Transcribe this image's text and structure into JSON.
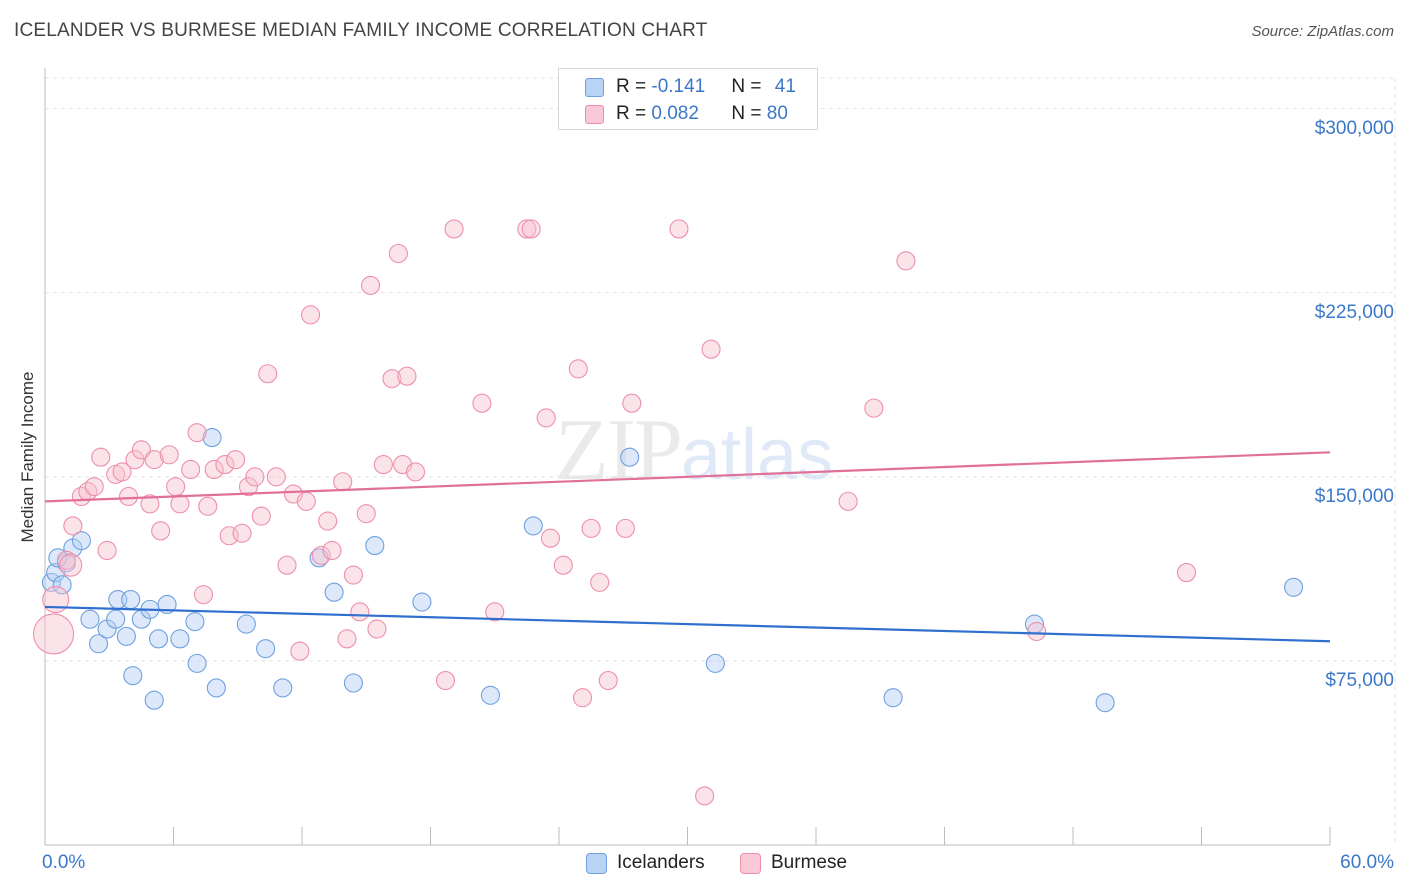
{
  "header": {
    "title": "ICELANDER VS BURMESE MEDIAN FAMILY INCOME CORRELATION CHART",
    "source": "Source: ZipAtlas.com"
  },
  "watermark": {
    "zip": "ZIP",
    "atlas": "atlas"
  },
  "legend": {
    "rows": [
      {
        "r_label": "R = ",
        "r_value": "-0.141",
        "n_label": "N = ",
        "n_value": "41",
        "color": "#a9c8f0"
      },
      {
        "r_label": "R = ",
        "r_value": "0.082",
        "n_label": "N = ",
        "n_value": "80",
        "color": "#f7b8cb"
      }
    ]
  },
  "bottom_legend": {
    "icelanders": "Icelanders",
    "burmese": "Burmese"
  },
  "chart_data": {
    "type": "scatter",
    "title": "ICELANDER VS BURMESE MEDIAN FAMILY INCOME CORRELATION CHART",
    "xlabel": "",
    "ylabel": "Median Family Income",
    "xlim": [
      0,
      60
    ],
    "ylim": [
      0,
      312500
    ],
    "x_tick_labels": [
      "0.0%",
      "60.0%"
    ],
    "y_ticks": [
      {
        "value": 75000,
        "label": "$75,000"
      },
      {
        "value": 150000,
        "label": "$150,000"
      },
      {
        "value": 225000,
        "label": "$225,000"
      },
      {
        "value": 300000,
        "label": "$300,000"
      }
    ],
    "grid": true,
    "legend_position": "top-center",
    "series": [
      {
        "name": "Icelanders",
        "color": "#6fa0e0",
        "fill": "#b3cff3",
        "trend": {
          "x": [
            0,
            60
          ],
          "y": [
            97000,
            83000
          ],
          "color": "#2f6fcf"
        },
        "points": [
          [
            0.3,
            107000
          ],
          [
            0.5,
            111000
          ],
          [
            0.8,
            106000
          ],
          [
            1.0,
            115000
          ],
          [
            1.3,
            121000
          ],
          [
            1.7,
            124000
          ],
          [
            2.1,
            92000
          ],
          [
            2.5,
            82000
          ],
          [
            2.9,
            88000
          ],
          [
            3.3,
            92000
          ],
          [
            3.4,
            100000
          ],
          [
            3.8,
            85000
          ],
          [
            4.0,
            100000
          ],
          [
            4.1,
            69000
          ],
          [
            4.5,
            92000
          ],
          [
            4.9,
            96000
          ],
          [
            5.1,
            59000
          ],
          [
            5.3,
            84000
          ],
          [
            5.7,
            98000
          ],
          [
            6.3,
            84000
          ],
          [
            7.0,
            91000
          ],
          [
            7.1,
            74000
          ],
          [
            7.8,
            166000
          ],
          [
            8.0,
            64000
          ],
          [
            9.4,
            90000
          ],
          [
            10.3,
            80000
          ],
          [
            11.1,
            64000
          ],
          [
            12.8,
            117000
          ],
          [
            13.5,
            103000
          ],
          [
            14.4,
            66000
          ],
          [
            15.4,
            122000
          ],
          [
            17.6,
            99000
          ],
          [
            20.8,
            61000
          ],
          [
            22.8,
            130000
          ],
          [
            27.3,
            158000
          ],
          [
            31.3,
            74000
          ],
          [
            39.6,
            60000
          ],
          [
            46.2,
            90000
          ],
          [
            49.5,
            58000
          ],
          [
            58.3,
            105000
          ],
          [
            0.6,
            117000
          ]
        ]
      },
      {
        "name": "Burmese",
        "color": "#ee8fab",
        "fill": "#f7c0d0",
        "trend": {
          "x": [
            0,
            60
          ],
          "y": [
            140000,
            160000
          ],
          "color": "#e0709a"
        },
        "points": [
          [
            0.4,
            86000
          ],
          [
            0.5,
            100000
          ],
          [
            1.0,
            116000
          ],
          [
            1.3,
            130000
          ],
          [
            1.7,
            142000
          ],
          [
            2.0,
            144000
          ],
          [
            2.3,
            146000
          ],
          [
            2.6,
            158000
          ],
          [
            2.9,
            120000
          ],
          [
            3.3,
            151000
          ],
          [
            3.6,
            152000
          ],
          [
            3.9,
            142000
          ],
          [
            4.2,
            157000
          ],
          [
            4.5,
            161000
          ],
          [
            4.9,
            139000
          ],
          [
            5.1,
            157000
          ],
          [
            5.4,
            128000
          ],
          [
            5.8,
            159000
          ],
          [
            6.1,
            146000
          ],
          [
            6.3,
            139000
          ],
          [
            6.8,
            153000
          ],
          [
            7.1,
            168000
          ],
          [
            7.4,
            102000
          ],
          [
            7.6,
            138000
          ],
          [
            7.9,
            153000
          ],
          [
            8.4,
            155000
          ],
          [
            8.6,
            126000
          ],
          [
            8.9,
            157000
          ],
          [
            9.2,
            127000
          ],
          [
            9.5,
            146000
          ],
          [
            9.8,
            150000
          ],
          [
            10.1,
            134000
          ],
          [
            10.4,
            192000
          ],
          [
            10.8,
            150000
          ],
          [
            11.3,
            114000
          ],
          [
            11.6,
            143000
          ],
          [
            11.9,
            79000
          ],
          [
            12.2,
            140000
          ],
          [
            12.4,
            216000
          ],
          [
            12.9,
            118000
          ],
          [
            13.2,
            132000
          ],
          [
            13.4,
            120000
          ],
          [
            13.9,
            148000
          ],
          [
            14.1,
            84000
          ],
          [
            14.4,
            110000
          ],
          [
            14.7,
            95000
          ],
          [
            15.0,
            135000
          ],
          [
            15.2,
            228000
          ],
          [
            15.5,
            88000
          ],
          [
            15.8,
            155000
          ],
          [
            16.2,
            190000
          ],
          [
            16.5,
            241000
          ],
          [
            16.7,
            155000
          ],
          [
            16.9,
            191000
          ],
          [
            17.3,
            152000
          ],
          [
            18.7,
            67000
          ],
          [
            19.1,
            251000
          ],
          [
            20.4,
            180000
          ],
          [
            21.0,
            95000
          ],
          [
            22.5,
            251000
          ],
          [
            22.7,
            251000
          ],
          [
            23.4,
            174000
          ],
          [
            23.6,
            125000
          ],
          [
            24.2,
            114000
          ],
          [
            24.9,
            194000
          ],
          [
            25.1,
            60000
          ],
          [
            25.5,
            129000
          ],
          [
            25.9,
            107000
          ],
          [
            26.3,
            67000
          ],
          [
            27.1,
            129000
          ],
          [
            27.4,
            180000
          ],
          [
            29.6,
            251000
          ],
          [
            30.8,
            20000
          ],
          [
            31.1,
            202000
          ],
          [
            37.5,
            140000
          ],
          [
            38.7,
            178000
          ],
          [
            40.2,
            238000
          ],
          [
            46.3,
            87000
          ],
          [
            53.3,
            111000
          ],
          [
            1.2,
            114000
          ]
        ]
      }
    ]
  }
}
